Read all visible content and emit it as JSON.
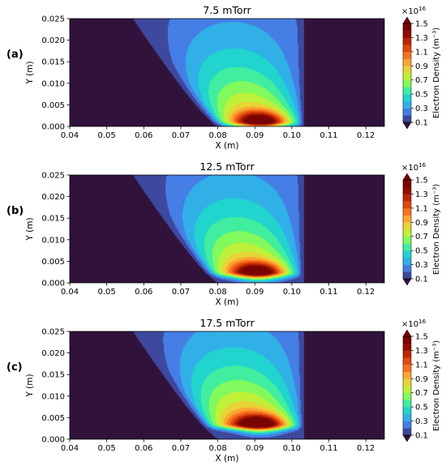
{
  "colors": {
    "background_min": "#30123b",
    "colormap": [
      "#30123b",
      "#3e4ca6",
      "#4686f0",
      "#2bbbe6",
      "#1fdec4",
      "#54f589",
      "#a4fc3c",
      "#d9e635",
      "#fbba39",
      "#fb8022",
      "#e85011",
      "#c32a04",
      "#950e01",
      "#7a0403"
    ]
  },
  "chart_data": [
    {
      "type": "heatmap",
      "panel_label": "(a)",
      "title": "7.5 mTorr",
      "xlabel": "X (m)",
      "ylabel": "Y (m)",
      "xlim": [
        0.04,
        0.125
      ],
      "ylim": [
        0.0,
        0.025
      ],
      "x_ticks": [
        "0.04",
        "0.05",
        "0.06",
        "0.07",
        "0.08",
        "0.09",
        "0.10",
        "0.11",
        "0.12"
      ],
      "y_ticks": [
        "0.000",
        "0.005",
        "0.010",
        "0.015",
        "0.020",
        "0.025"
      ],
      "colorbar": {
        "label": "Electron Density (m⁻³)",
        "multiplier": "×10",
        "multiplier_exp": "16",
        "ticks": [
          "0.1",
          "0.3",
          "0.5",
          "0.7",
          "0.9",
          "1.1",
          "1.3",
          "1.5"
        ],
        "levels": [
          0.1,
          0.2,
          0.3,
          0.4,
          0.5,
          0.6,
          0.7,
          0.8,
          0.9,
          1.0,
          1.1,
          1.2,
          1.3,
          1.4,
          1.5
        ],
        "extend": "both"
      },
      "plasma": {
        "peak_value": 1.5,
        "peak_x": 0.0915,
        "peak_y": 0.0012,
        "center_x_top": 0.084,
        "right_edge_x": 0.104,
        "left_edge_at_top_x": 0.056,
        "left_edge_at_bottom_x": 0.079
      },
      "grid": false
    },
    {
      "type": "heatmap",
      "panel_label": "(b)",
      "title": "12.5 mTorr",
      "xlabel": "X (m)",
      "ylabel": "Y (m)",
      "xlim": [
        0.04,
        0.125
      ],
      "ylim": [
        0.0,
        0.025
      ],
      "x_ticks": [
        "0.04",
        "0.05",
        "0.06",
        "0.07",
        "0.08",
        "0.09",
        "0.10",
        "0.11",
        "0.12"
      ],
      "y_ticks": [
        "0.000",
        "0.005",
        "0.010",
        "0.015",
        "0.020",
        "0.025"
      ],
      "colorbar": {
        "label": "Electron Density (m⁻³)",
        "multiplier": "×10",
        "multiplier_exp": "16",
        "ticks": [
          "0.1",
          "0.3",
          "0.5",
          "0.7",
          "0.9",
          "1.1",
          "1.3",
          "1.5"
        ],
        "levels": [
          0.1,
          0.2,
          0.3,
          0.4,
          0.5,
          0.6,
          0.7,
          0.8,
          0.9,
          1.0,
          1.1,
          1.2,
          1.3,
          1.4,
          1.5
        ],
        "extend": "both"
      },
      "plasma": {
        "peak_value": 1.52,
        "peak_x": 0.091,
        "peak_y": 0.0025,
        "center_x_top": 0.084,
        "right_edge_x": 0.104,
        "left_edge_at_top_x": 0.056,
        "left_edge_at_bottom_x": 0.079
      },
      "grid": false
    },
    {
      "type": "heatmap",
      "panel_label": "(c)",
      "title": "17.5 mTorr",
      "xlabel": "X (m)",
      "ylabel": "Y (m)",
      "xlim": [
        0.04,
        0.125
      ],
      "ylim": [
        0.0,
        0.025
      ],
      "x_ticks": [
        "0.04",
        "0.05",
        "0.06",
        "0.07",
        "0.08",
        "0.09",
        "0.10",
        "0.11",
        "0.12"
      ],
      "y_ticks": [
        "0.000",
        "0.005",
        "0.010",
        "0.015",
        "0.020",
        "0.025"
      ],
      "colorbar": {
        "label": "Electron Density (m⁻³)",
        "multiplier": "×10",
        "multiplier_exp": "16",
        "ticks": [
          "0.1",
          "0.3",
          "0.5",
          "0.7",
          "0.9",
          "1.1",
          "1.3",
          "1.5"
        ],
        "levels": [
          0.1,
          0.2,
          0.3,
          0.4,
          0.5,
          0.6,
          0.7,
          0.8,
          0.9,
          1.0,
          1.1,
          1.2,
          1.3,
          1.4,
          1.5
        ],
        "extend": "both"
      },
      "plasma": {
        "peak_value": 1.6,
        "peak_x": 0.0915,
        "peak_y": 0.0035,
        "center_x_top": 0.084,
        "right_edge_x": 0.104,
        "left_edge_at_top_x": 0.056,
        "left_edge_at_bottom_x": 0.079
      },
      "grid": false
    }
  ]
}
